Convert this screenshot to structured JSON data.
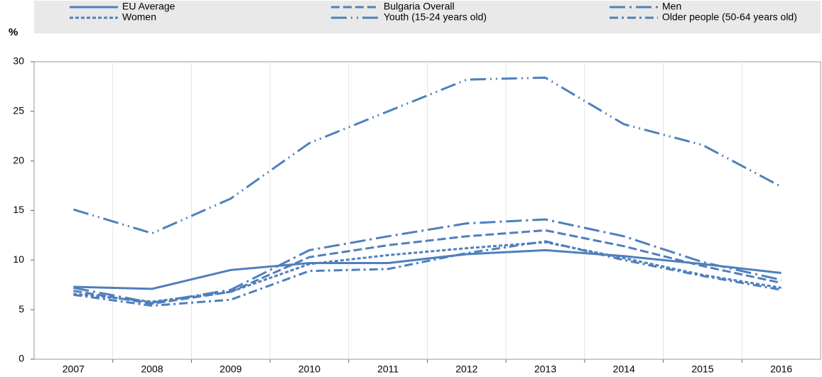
{
  "chart_data": {
    "type": "line",
    "y_axis_label": "%",
    "categories": [
      "2007",
      "2008",
      "2009",
      "2010",
      "2011",
      "2012",
      "2013",
      "2014",
      "2015",
      "2016"
    ],
    "series": [
      {
        "name": "EU Average",
        "color": "#4f7fbd",
        "dash": "solid",
        "values": [
          7.3,
          7.1,
          9.0,
          9.7,
          9.7,
          10.6,
          11.0,
          10.4,
          9.6,
          8.7
        ]
      },
      {
        "name": "Bulgaria Overall",
        "color": "#4f7fbd",
        "dash": "dashed",
        "values": [
          6.9,
          5.6,
          6.8,
          10.3,
          11.5,
          12.4,
          13.0,
          11.4,
          9.4,
          7.7
        ]
      },
      {
        "name": "Men",
        "color": "#4f7fbd",
        "dash": "longdashdot",
        "values": [
          7.2,
          5.7,
          7.0,
          11.0,
          12.4,
          13.7,
          14.1,
          12.4,
          9.8,
          8.0
        ]
      },
      {
        "name": "Women",
        "color": "#4f7fbd",
        "dash": "shortdash",
        "values": [
          6.6,
          5.8,
          6.8,
          9.6,
          10.5,
          11.2,
          11.8,
          10.2,
          8.5,
          7.2
        ]
      },
      {
        "name": "Youth (15-24 years old)",
        "color": "#4f7fbd",
        "dash": "dashdotdot",
        "values": [
          15.1,
          12.7,
          16.2,
          21.8,
          25.0,
          28.2,
          28.4,
          23.7,
          21.6,
          17.4
        ]
      },
      {
        "name": "Older people (50-64 years old)",
        "color": "#4f7fbd",
        "dash": "dashdot",
        "values": [
          6.5,
          5.4,
          6.0,
          8.9,
          9.1,
          10.7,
          11.9,
          10.0,
          8.4,
          7.0
        ]
      }
    ],
    "ylim": [
      0,
      30
    ],
    "yticks": [
      0,
      5,
      10,
      15,
      20,
      25,
      30
    ],
    "legend": "top"
  }
}
